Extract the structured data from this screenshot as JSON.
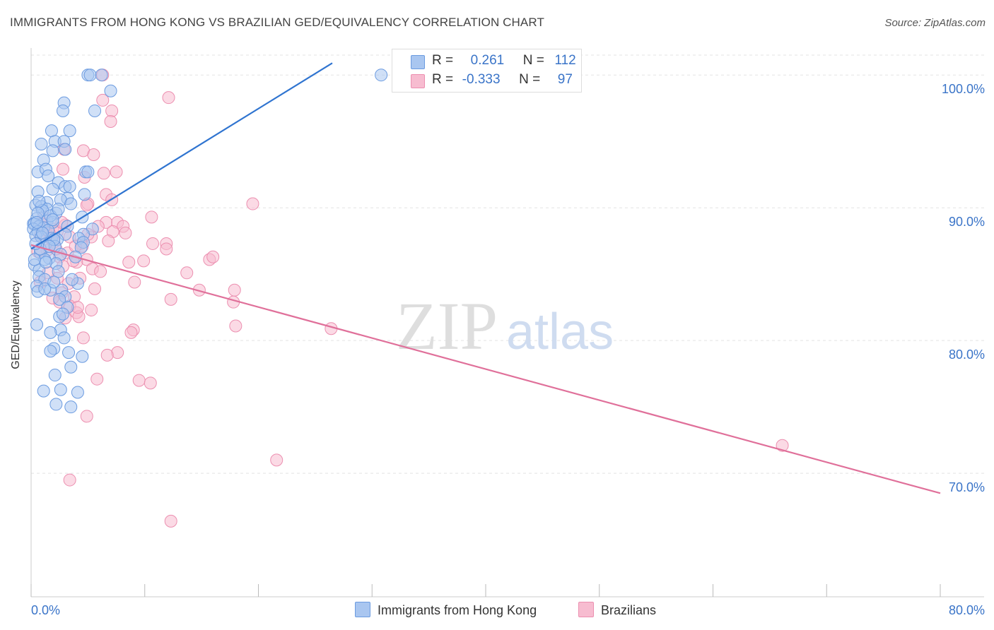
{
  "title": "IMMIGRANTS FROM HONG KONG VS BRAZILIAN GED/EQUIVALENCY CORRELATION CHART",
  "source": "Source: ZipAtlas.com",
  "watermark": {
    "zip": "ZIP",
    "atlas": "atlas"
  },
  "colors": {
    "blue_fill": "#a9c6f0",
    "blue_stroke": "#6b9be0",
    "blue_line": "#2f74d0",
    "pink_fill": "#f7bcd0",
    "pink_stroke": "#ec8fb0",
    "pink_line": "#e0709a",
    "tick_label": "#3a74c8",
    "grid": "#e3e3e3"
  },
  "legend": {
    "rows": [
      {
        "r_label": "R =",
        "r_value": "0.261",
        "n_label": "N =",
        "n_value": "112",
        "color": "#a9c6f0"
      },
      {
        "r_label": "R =",
        "r_value": "-0.333",
        "n_label": "N =",
        "n_value": "97",
        "color": "#f7bcd0"
      }
    ]
  },
  "bottom_legend": [
    {
      "label": "Immigrants from Hong Kong",
      "color": "#a9c6f0"
    },
    {
      "label": "Brazilians",
      "color": "#f7bcd0"
    }
  ],
  "chart_data": {
    "type": "scatter",
    "ylabel": "GED/Equivalency",
    "xlabel": "",
    "xlim": [
      0,
      80
    ],
    "ylim": [
      60.7,
      101.5
    ],
    "x_ticks": [
      {
        "value": 0,
        "label": "0.0%"
      },
      {
        "value": 80,
        "label": "80.0%"
      }
    ],
    "y_ticks": [
      {
        "value": 100,
        "label": "100.0%"
      },
      {
        "value": 90,
        "label": "90.0%"
      },
      {
        "value": 80,
        "label": "80.0%"
      },
      {
        "value": 70,
        "label": "70.0%"
      }
    ],
    "grid": true,
    "legend_position": "top",
    "series": [
      {
        "name": "Immigrants from Hong Kong",
        "r": 0.261,
        "n": 112,
        "trend": [
          [
            0,
            86.9
          ],
          [
            26.5,
            100.9
          ]
        ],
        "points": [
          [
            5.0,
            100
          ],
          [
            5.2,
            100
          ],
          [
            6.2,
            100
          ],
          [
            30.8,
            100
          ],
          [
            7.0,
            98.8
          ],
          [
            2.9,
            97.9
          ],
          [
            2.8,
            97.3
          ],
          [
            5.6,
            97.3
          ],
          [
            1.8,
            95.8
          ],
          [
            3.4,
            95.8
          ],
          [
            2.1,
            95.0
          ],
          [
            2.9,
            95.0
          ],
          [
            0.9,
            94.8
          ],
          [
            1.9,
            94.3
          ],
          [
            3.0,
            94.4
          ],
          [
            1.1,
            93.6
          ],
          [
            0.6,
            92.7
          ],
          [
            1.3,
            92.9
          ],
          [
            4.8,
            92.7
          ],
          [
            5.0,
            92.7
          ],
          [
            1.5,
            92.4
          ],
          [
            2.4,
            91.9
          ],
          [
            3.0,
            91.6
          ],
          [
            3.4,
            91.6
          ],
          [
            1.9,
            91.4
          ],
          [
            0.6,
            91.2
          ],
          [
            4.7,
            91.0
          ],
          [
            3.2,
            90.7
          ],
          [
            2.6,
            90.6
          ],
          [
            1.4,
            90.4
          ],
          [
            3.5,
            90.3
          ],
          [
            0.4,
            90.2
          ],
          [
            0.9,
            90.1
          ],
          [
            1.4,
            89.9
          ],
          [
            1.0,
            89.8
          ],
          [
            2.2,
            89.6
          ],
          [
            4.5,
            89.3
          ],
          [
            0.5,
            89.2
          ],
          [
            1.4,
            89.0
          ],
          [
            1.9,
            88.9
          ],
          [
            0.2,
            88.8
          ],
          [
            0.3,
            88.8
          ],
          [
            0.7,
            88.6
          ],
          [
            1.1,
            88.5
          ],
          [
            3.2,
            88.6
          ],
          [
            5.4,
            88.4
          ],
          [
            0.2,
            88.4
          ],
          [
            0.6,
            88.2
          ],
          [
            1.5,
            88.3
          ],
          [
            3.0,
            88.0
          ],
          [
            4.6,
            88.0
          ],
          [
            0.4,
            87.9
          ],
          [
            0.9,
            87.8
          ],
          [
            1.8,
            87.7
          ],
          [
            2.3,
            87.6
          ],
          [
            4.2,
            87.7
          ],
          [
            4.6,
            87.4
          ],
          [
            1.3,
            87.3
          ],
          [
            2.1,
            87.1
          ],
          [
            4.4,
            87.0
          ],
          [
            0.8,
            86.6
          ],
          [
            2.6,
            86.5
          ],
          [
            1.6,
            86.2
          ],
          [
            1.2,
            86.1
          ],
          [
            0.3,
            85.7
          ],
          [
            2.2,
            85.8
          ],
          [
            0.7,
            85.3
          ],
          [
            2.4,
            85.2
          ],
          [
            0.7,
            84.8
          ],
          [
            1.2,
            84.6
          ],
          [
            4.1,
            84.3
          ],
          [
            0.5,
            84.1
          ],
          [
            1.7,
            83.8
          ],
          [
            2.7,
            83.8
          ],
          [
            0.6,
            83.7
          ],
          [
            3.0,
            83.3
          ],
          [
            2.5,
            83.1
          ],
          [
            3.2,
            82.5
          ],
          [
            2.5,
            81.8
          ],
          [
            0.5,
            81.2
          ],
          [
            2.6,
            80.8
          ],
          [
            1.7,
            80.6
          ],
          [
            2.9,
            80.2
          ],
          [
            2.0,
            79.4
          ],
          [
            1.7,
            79.2
          ],
          [
            3.3,
            79.1
          ],
          [
            4.5,
            78.8
          ],
          [
            3.5,
            78.0
          ],
          [
            2.1,
            77.4
          ],
          [
            1.1,
            76.2
          ],
          [
            2.6,
            76.3
          ],
          [
            4.1,
            76.1
          ],
          [
            2.2,
            75.2
          ],
          [
            3.5,
            75.0
          ],
          [
            0.7,
            90.5
          ],
          [
            1.7,
            89.4
          ],
          [
            2.0,
            87.6
          ],
          [
            0.8,
            86.9
          ],
          [
            1.3,
            85.9
          ],
          [
            1.9,
            89.1
          ],
          [
            0.4,
            87.3
          ],
          [
            3.6,
            84.6
          ],
          [
            0.3,
            86.1
          ],
          [
            2.8,
            82.0
          ],
          [
            1.0,
            88.1
          ],
          [
            1.6,
            87.1
          ],
          [
            2.4,
            89.9
          ],
          [
            0.6,
            89.6
          ],
          [
            3.9,
            86.3
          ],
          [
            1.2,
            83.9
          ],
          [
            2.0,
            84.4
          ],
          [
            0.5,
            88.9
          ]
        ]
      },
      {
        "name": "Brazilians",
        "r": -0.333,
        "n": 97,
        "trend": [
          [
            0,
            87.2
          ],
          [
            80,
            68.5
          ]
        ],
        "points": [
          [
            6.3,
            100
          ],
          [
            12.1,
            98.3
          ],
          [
            6.3,
            98.1
          ],
          [
            7.1,
            97.3
          ],
          [
            7.0,
            96.5
          ],
          [
            4.6,
            94.3
          ],
          [
            5.5,
            94.0
          ],
          [
            2.9,
            94.4
          ],
          [
            2.8,
            92.9
          ],
          [
            6.4,
            92.6
          ],
          [
            7.5,
            92.7
          ],
          [
            4.7,
            92.3
          ],
          [
            6.6,
            91.0
          ],
          [
            7.1,
            90.6
          ],
          [
            5.0,
            90.3
          ],
          [
            19.5,
            90.3
          ],
          [
            4.9,
            90.2
          ],
          [
            10.6,
            89.3
          ],
          [
            6.6,
            88.9
          ],
          [
            7.6,
            88.9
          ],
          [
            8.1,
            88.6
          ],
          [
            5.9,
            88.6
          ],
          [
            3.0,
            88.7
          ],
          [
            1.9,
            88.4
          ],
          [
            1.2,
            88.5
          ],
          [
            2.3,
            88.2
          ],
          [
            7.2,
            88.2
          ],
          [
            8.3,
            88.1
          ],
          [
            0.8,
            87.9
          ],
          [
            3.4,
            87.8
          ],
          [
            5.3,
            87.8
          ],
          [
            1.7,
            87.7
          ],
          [
            10.7,
            87.3
          ],
          [
            11.9,
            87.3
          ],
          [
            4.4,
            87.3
          ],
          [
            11.9,
            86.9
          ],
          [
            4.5,
            87.1
          ],
          [
            1.4,
            86.8
          ],
          [
            3.2,
            86.6
          ],
          [
            2.5,
            86.3
          ],
          [
            15.7,
            86.1
          ],
          [
            16.0,
            86.3
          ],
          [
            9.9,
            86.0
          ],
          [
            4.9,
            86.1
          ],
          [
            4.0,
            85.9
          ],
          [
            5.4,
            85.4
          ],
          [
            6.1,
            85.2
          ],
          [
            13.7,
            85.1
          ],
          [
            4.3,
            84.7
          ],
          [
            2.3,
            84.7
          ],
          [
            9.1,
            84.4
          ],
          [
            0.8,
            84.4
          ],
          [
            5.6,
            83.9
          ],
          [
            14.8,
            83.8
          ],
          [
            17.9,
            83.8
          ],
          [
            2.7,
            83.6
          ],
          [
            3.8,
            83.3
          ],
          [
            12.3,
            83.1
          ],
          [
            2.5,
            82.9
          ],
          [
            17.8,
            82.9
          ],
          [
            3.4,
            82.6
          ],
          [
            4.0,
            82.1
          ],
          [
            5.3,
            82.3
          ],
          [
            3.0,
            81.7
          ],
          [
            4.2,
            81.8
          ],
          [
            18.0,
            81.1
          ],
          [
            26.4,
            80.9
          ],
          [
            9.0,
            80.8
          ],
          [
            8.8,
            80.6
          ],
          [
            4.6,
            80.2
          ],
          [
            7.6,
            79.1
          ],
          [
            6.7,
            78.9
          ],
          [
            5.8,
            77.1
          ],
          [
            9.5,
            77.0
          ],
          [
            10.5,
            76.8
          ],
          [
            4.9,
            74.3
          ],
          [
            66.1,
            72.1
          ],
          [
            21.6,
            71.0
          ],
          [
            3.4,
            69.5
          ],
          [
            12.3,
            66.4
          ],
          [
            1.1,
            89.3
          ],
          [
            2.0,
            87.4
          ],
          [
            3.7,
            86.0
          ],
          [
            1.5,
            85.1
          ],
          [
            0.6,
            86.7
          ],
          [
            2.8,
            85.6
          ],
          [
            5.0,
            88.0
          ],
          [
            6.8,
            87.5
          ],
          [
            1.9,
            83.2
          ],
          [
            3.3,
            84.3
          ],
          [
            8.6,
            85.9
          ],
          [
            4.1,
            82.5
          ],
          [
            2.2,
            86.9
          ],
          [
            0.9,
            88.8
          ],
          [
            1.6,
            88.1
          ],
          [
            3.9,
            87.1
          ],
          [
            2.7,
            88.9
          ]
        ]
      }
    ]
  }
}
